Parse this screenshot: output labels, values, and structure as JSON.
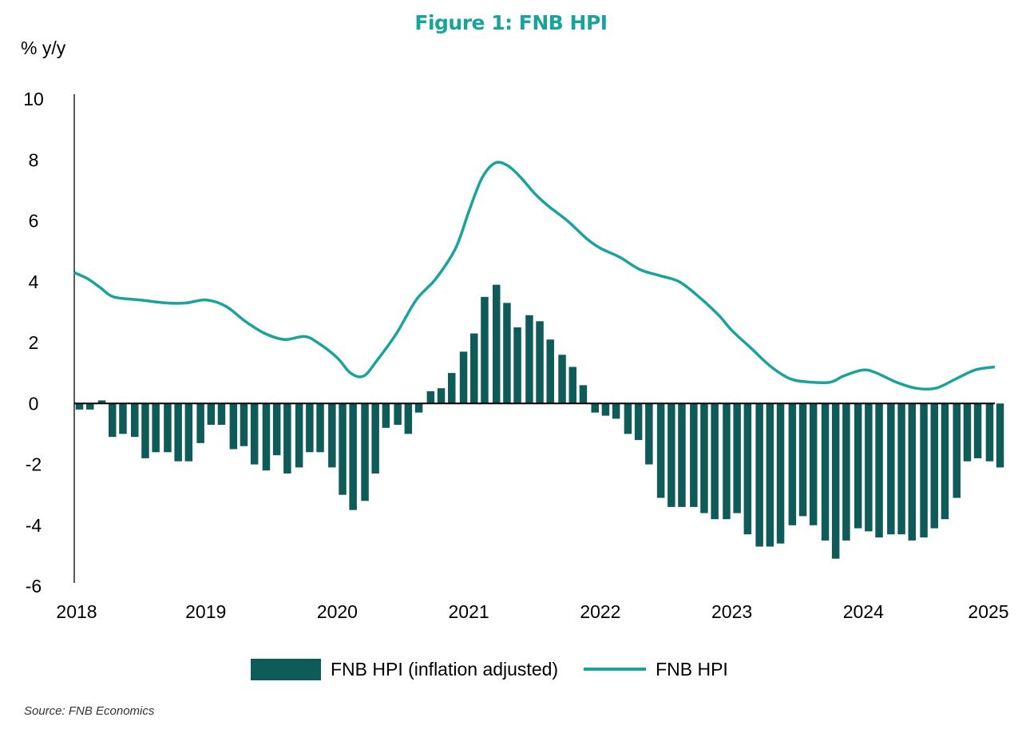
{
  "chart_data": {
    "type": "bar",
    "title": "Figure 1: FNB HPI",
    "ylabel": "% y/y",
    "xlabel": "",
    "ylim": [
      -6,
      10
    ],
    "yticks": [
      "10",
      "8",
      "6",
      "4",
      "2",
      "0",
      "-2",
      "-4",
      "-6"
    ],
    "ytick_values": [
      10,
      8,
      6,
      4,
      2,
      0,
      -2,
      -4,
      -6
    ],
    "xticks": [
      "2018",
      "2019",
      "2020",
      "2021",
      "2022",
      "2023",
      "2024",
      "2025"
    ],
    "xtick_values": [
      2018,
      2019,
      2020,
      2021,
      2022,
      2023,
      2024,
      2025
    ],
    "legend_position": "bottom",
    "series": [
      {
        "name": "FNB HPI (inflation adjusted)",
        "type": "bar",
        "color": "#0e5b5a",
        "start": "2018-01",
        "frequency": "quarterly-ish (approx. 12 bars per year)",
        "x": [
          2018.04,
          2018.12,
          2018.21,
          2018.29,
          2018.37,
          2018.46,
          2018.54,
          2018.62,
          2018.71,
          2018.79,
          2018.87,
          2018.96,
          2019.04,
          2019.12,
          2019.21,
          2019.29,
          2019.37,
          2019.46,
          2019.54,
          2019.62,
          2019.71,
          2019.79,
          2019.87,
          2019.96,
          2020.04,
          2020.12,
          2020.21,
          2020.29,
          2020.37,
          2020.46,
          2020.54,
          2020.62,
          2020.71,
          2020.79,
          2020.87,
          2020.96,
          2021.04,
          2021.12,
          2021.21,
          2021.29,
          2021.37,
          2021.46,
          2021.54,
          2021.62,
          2021.71,
          2021.79,
          2021.87,
          2021.96,
          2022.04,
          2022.12,
          2022.21,
          2022.29,
          2022.37,
          2022.46,
          2022.54,
          2022.62,
          2022.71,
          2022.79,
          2022.87,
          2022.96,
          2023.04,
          2023.12,
          2023.21,
          2023.29,
          2023.37,
          2023.46,
          2023.54,
          2023.62,
          2023.71,
          2023.79,
          2023.87,
          2023.96,
          2024.04,
          2024.12,
          2024.21,
          2024.29,
          2024.37,
          2024.46,
          2024.54,
          2024.62,
          2024.71,
          2024.79,
          2024.87,
          2024.96,
          2025.04
        ],
        "values": [
          -0.2,
          -0.2,
          0.1,
          -1.1,
          -1.0,
          -1.1,
          -1.8,
          -1.6,
          -1.6,
          -1.9,
          -1.9,
          -1.3,
          -0.7,
          -0.7,
          -1.5,
          -1.4,
          -2.0,
          -2.2,
          -1.7,
          -2.3,
          -2.1,
          -1.6,
          -1.6,
          -2.1,
          -3.0,
          -3.5,
          -3.2,
          -2.3,
          -0.8,
          -0.7,
          -1.0,
          -0.3,
          0.4,
          0.5,
          1.0,
          1.7,
          2.3,
          3.5,
          3.9,
          3.3,
          2.5,
          2.9,
          2.7,
          2.1,
          1.6,
          1.2,
          0.6,
          -0.3,
          -0.4,
          -0.5,
          -1.0,
          -1.2,
          -2.0,
          -3.1,
          -3.4,
          -3.4,
          -3.4,
          -3.6,
          -3.8,
          -3.8,
          -3.6,
          -4.3,
          -4.7,
          -4.7,
          -4.6,
          -4.0,
          -3.7,
          -4.0,
          -4.5,
          -5.1,
          -4.5,
          -4.1,
          -4.2,
          -4.4,
          -4.3,
          -4.3,
          -4.5,
          -4.4,
          -4.1,
          -3.8,
          -3.1,
          -1.9,
          -1.8,
          -1.9,
          -2.1
        ]
      },
      {
        "name": "FNB HPI",
        "type": "line",
        "color": "#1aa39b",
        "x": [
          2018.0,
          2018.1,
          2018.2,
          2018.3,
          2018.5,
          2018.7,
          2018.85,
          2019.0,
          2019.15,
          2019.3,
          2019.45,
          2019.6,
          2019.75,
          2019.85,
          2020.0,
          2020.1,
          2020.2,
          2020.3,
          2020.45,
          2020.6,
          2020.75,
          2020.9,
          2021.0,
          2021.1,
          2021.2,
          2021.3,
          2021.4,
          2021.5,
          2021.6,
          2021.75,
          2021.9,
          2022.0,
          2022.15,
          2022.3,
          2022.45,
          2022.6,
          2022.75,
          2022.9,
          2023.0,
          2023.15,
          2023.3,
          2023.45,
          2023.6,
          2023.75,
          2023.85,
          2024.0,
          2024.1,
          2024.25,
          2024.4,
          2024.55,
          2024.7,
          2024.85,
          2025.0
        ],
        "values": [
          4.3,
          4.1,
          3.8,
          3.5,
          3.4,
          3.3,
          3.3,
          3.4,
          3.2,
          2.7,
          2.3,
          2.1,
          2.2,
          2.0,
          1.5,
          1.0,
          0.9,
          1.4,
          2.3,
          3.4,
          4.1,
          5.1,
          6.3,
          7.4,
          7.9,
          7.8,
          7.4,
          6.9,
          6.5,
          6.0,
          5.4,
          5.1,
          4.8,
          4.4,
          4.2,
          4.0,
          3.5,
          2.9,
          2.4,
          1.8,
          1.2,
          0.8,
          0.7,
          0.7,
          0.9,
          1.1,
          1.0,
          0.7,
          0.5,
          0.5,
          0.8,
          1.1,
          1.2
        ]
      }
    ]
  },
  "source": "Source: FNB Economics"
}
